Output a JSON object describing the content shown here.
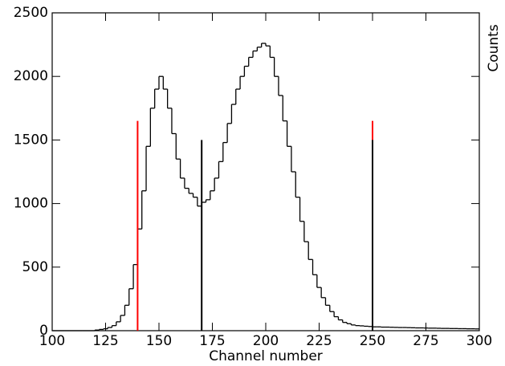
{
  "chart_data": {
    "type": "histogram",
    "xlabel": "Channel number",
    "ylabel": "Counts",
    "xlim": [
      100,
      300
    ],
    "xticks": [
      100,
      125,
      150,
      175,
      200,
      225,
      250,
      275,
      300
    ],
    "ylim": [
      0,
      2500
    ],
    "yticks": [
      0,
      500,
      1000,
      1500,
      2000,
      2500
    ],
    "color": "#000000",
    "bins": [
      100,
      102,
      104,
      106,
      108,
      110,
      112,
      114,
      116,
      118,
      120,
      122,
      124,
      126,
      128,
      130,
      132,
      134,
      136,
      138,
      140,
      142,
      144,
      146,
      148,
      150,
      152,
      154,
      156,
      158,
      160,
      162,
      164,
      166,
      168,
      170,
      172,
      174,
      176,
      178,
      180,
      182,
      184,
      186,
      188,
      190,
      192,
      194,
      196,
      198,
      200,
      202,
      204,
      206,
      208,
      210,
      212,
      214,
      216,
      218,
      220,
      222,
      224,
      226,
      228,
      230,
      232,
      234,
      236,
      238,
      240,
      242,
      244,
      246,
      248,
      250,
      252,
      254,
      256,
      258,
      260,
      262,
      264,
      266,
      268,
      270,
      272,
      274,
      276,
      278,
      280,
      282,
      284,
      286,
      288,
      290,
      292,
      294,
      296,
      298,
      300
    ],
    "values": [
      0,
      0,
      0,
      0,
      0,
      0,
      0,
      0,
      0,
      0,
      5,
      10,
      15,
      25,
      40,
      70,
      120,
      200,
      330,
      520,
      800,
      1100,
      1450,
      1750,
      1900,
      2000,
      1900,
      1750,
      1550,
      1350,
      1200,
      1120,
      1080,
      1050,
      980,
      1010,
      1030,
      1100,
      1200,
      1330,
      1480,
      1630,
      1780,
      1900,
      2000,
      2080,
      2150,
      2200,
      2230,
      2260,
      2240,
      2150,
      2000,
      1850,
      1650,
      1450,
      1250,
      1050,
      860,
      700,
      560,
      440,
      340,
      260,
      200,
      150,
      110,
      85,
      65,
      55,
      45,
      40,
      38,
      35,
      33,
      30,
      30,
      28,
      28,
      27,
      26,
      25,
      25,
      24,
      23,
      22,
      22,
      21,
      20,
      20,
      19,
      18,
      18,
      17,
      17,
      16,
      16,
      15,
      15,
      14
    ],
    "vlines": [
      {
        "x": 140,
        "height": 1650,
        "color": "#ff0000"
      },
      {
        "x": 170,
        "height": 1500,
        "color": "#000000"
      },
      {
        "x": 250,
        "height": 1650,
        "color": "#ff0000"
      },
      {
        "x": 250,
        "height": 1500,
        "color": "#000000"
      }
    ]
  }
}
